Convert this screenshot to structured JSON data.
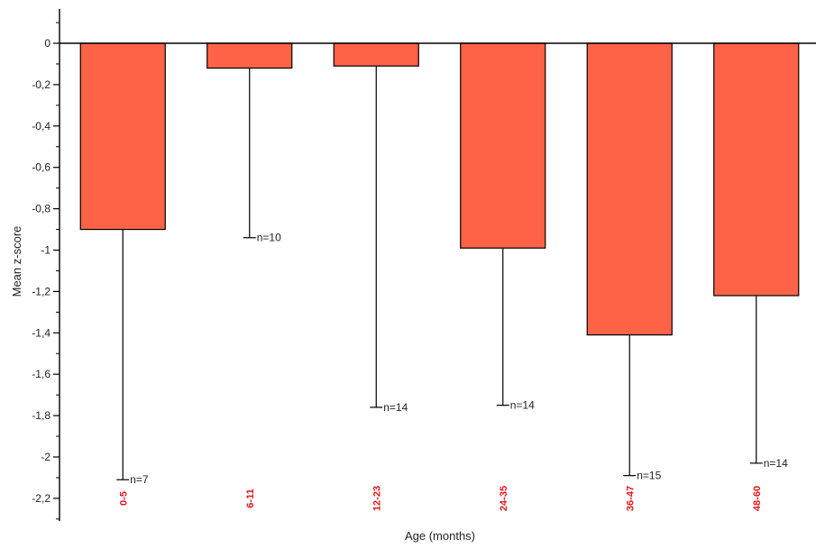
{
  "chart_data": {
    "type": "bar",
    "categories": [
      "0-5",
      "6-11",
      "12-23",
      "24-35",
      "36-47",
      "48-60"
    ],
    "values": [
      -0.9,
      -0.12,
      -0.11,
      -0.99,
      -1.41,
      -1.22
    ],
    "error_low": [
      -2.11,
      -0.94,
      -1.76,
      -1.75,
      -2.09,
      -2.03
    ],
    "n_labels": [
      "n=7",
      "n=10",
      "n=14",
      "n=14",
      "n=15",
      "n=14"
    ],
    "xlabel": "Age (months)",
    "ylabel": "Mean z-score",
    "ylim": [
      -2.3,
      0.15
    ],
    "yticks": [
      0,
      -0.2,
      -0.4,
      -0.6,
      -0.8,
      -1,
      -1.2,
      -1.4,
      -1.6,
      -1.8,
      -2,
      -2.2
    ],
    "ytick_labels": [
      "0",
      "-0,2",
      "-0,4",
      "-0,6",
      "-0,8",
      "-1",
      "-1,2",
      "-1,4",
      "-1,6",
      "-1,8",
      "-2",
      "-2,2"
    ],
    "grid": false,
    "colors": {
      "bar_fill": "#ff6347",
      "bar_stroke": "#000000",
      "category_label": "#e8141c",
      "axis": "#000000"
    }
  }
}
